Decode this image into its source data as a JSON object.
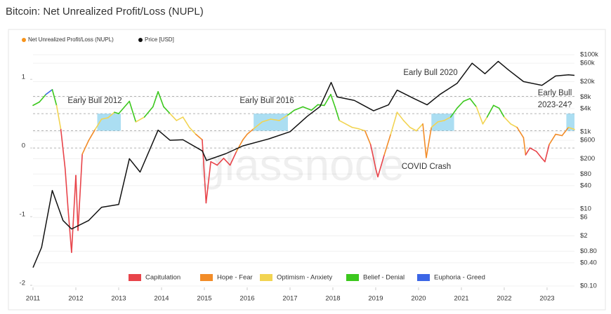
{
  "chart_data": {
    "type": "line",
    "title": "Bitcoin: Net Unrealized Profit/Loss (NUPL)",
    "watermark": "glassnode",
    "xlim": [
      2011,
      2023.64
    ],
    "xticks": [
      2011,
      2012,
      2013,
      2014,
      2015,
      2016,
      2017,
      2018,
      2019,
      2020,
      2021,
      2022,
      2023
    ],
    "ylim": [
      -2.03,
      1.41
    ],
    "yticks": [
      -2,
      -1,
      0,
      1
    ],
    "y2lim": [
      0.092,
      123000
    ],
    "y2log": true,
    "y2ticks": [
      {
        "value": 100000,
        "label": "$100k"
      },
      {
        "value": 60000,
        "label": "$60k"
      },
      {
        "value": 20000,
        "label": "$20k"
      },
      {
        "value": 8000,
        "label": "$8k"
      },
      {
        "value": 4000,
        "label": "$4k"
      },
      {
        "value": 1000,
        "label": "$1k"
      },
      {
        "value": 600,
        "label": "$600"
      },
      {
        "value": 200,
        "label": "$200"
      },
      {
        "value": 80,
        "label": "$80"
      },
      {
        "value": 40,
        "label": "$40"
      },
      {
        "value": 10,
        "label": "$10"
      },
      {
        "value": 6,
        "label": "$6"
      },
      {
        "value": 2,
        "label": "$2"
      },
      {
        "value": 0.8,
        "label": "$0.80"
      },
      {
        "value": 0.4,
        "label": "$0.40"
      },
      {
        "value": 0.1,
        "label": "$0.10"
      }
    ],
    "zone_bounds": [
      0,
      0.25,
      0.5,
      0.75
    ],
    "zones": [
      {
        "name": "Capitulation",
        "color": "#e8444a"
      },
      {
        "name": "Hope - Fear",
        "color": "#f28c28"
      },
      {
        "name": "Optimism - Anxiety",
        "color": "#f2d452"
      },
      {
        "name": "Belief - Denial",
        "color": "#3cc81e"
      },
      {
        "name": "Euphoria - Greed",
        "color": "#3c66e6"
      }
    ],
    "highlights": [
      [
        2012.5,
        2013.05
      ],
      [
        2016.15,
        2016.95
      ],
      [
        2020.3,
        2020.83
      ],
      [
        2023.45,
        2023.64
      ]
    ],
    "annotations": [
      "Early Bull 2012",
      "Early Bull 2016",
      "Early Bull 2020",
      "Early Bull",
      "2023-24?",
      "COVID Crash"
    ],
    "series": [
      {
        "name": "Net Unrealized Profit/Loss (NUPL)",
        "color": "#f7931a",
        "x": [
          2011.0,
          2011.15,
          2011.3,
          2011.45,
          2011.55,
          2011.65,
          2011.75,
          2011.82,
          2011.9,
          2012.0,
          2012.05,
          2012.15,
          2012.3,
          2012.45,
          2012.6,
          2012.75,
          2012.9,
          2013.0,
          2013.25,
          2013.4,
          2013.6,
          2013.8,
          2013.92,
          2014.05,
          2014.2,
          2014.35,
          2014.5,
          2014.65,
          2014.8,
          2014.95,
          2015.04,
          2015.15,
          2015.3,
          2015.45,
          2015.6,
          2015.75,
          2015.9,
          2016.0,
          2016.15,
          2016.35,
          2016.55,
          2016.75,
          2016.95,
          2017.1,
          2017.3,
          2017.5,
          2017.65,
          2017.8,
          2017.95,
          2018.05,
          2018.15,
          2018.3,
          2018.45,
          2018.6,
          2018.75,
          2018.88,
          2018.95,
          2019.0,
          2019.05,
          2019.2,
          2019.35,
          2019.5,
          2019.65,
          2019.8,
          2019.95,
          2020.1,
          2020.18,
          2020.3,
          2020.45,
          2020.6,
          2020.75,
          2020.9,
          2021.05,
          2021.2,
          2021.35,
          2021.5,
          2021.6,
          2021.75,
          2021.88,
          2022.0,
          2022.15,
          2022.3,
          2022.45,
          2022.5,
          2022.6,
          2022.75,
          2022.88,
          2022.95,
          2023.05,
          2023.2,
          2023.35,
          2023.5,
          2023.64
        ],
        "values": [
          0.62,
          0.67,
          0.78,
          0.85,
          0.62,
          0.27,
          -0.3,
          -0.9,
          -1.52,
          -0.4,
          -1.2,
          -0.09,
          0.11,
          0.27,
          0.42,
          0.44,
          0.52,
          0.5,
          0.68,
          0.38,
          0.45,
          0.6,
          0.82,
          0.6,
          0.5,
          0.4,
          0.45,
          0.3,
          0.2,
          0.12,
          -0.8,
          -0.2,
          -0.25,
          -0.15,
          -0.25,
          -0.05,
          0.12,
          0.2,
          0.28,
          0.38,
          0.42,
          0.4,
          0.48,
          0.55,
          0.6,
          0.55,
          0.63,
          0.62,
          0.78,
          0.6,
          0.4,
          0.35,
          0.3,
          0.28,
          0.25,
          0.05,
          -0.15,
          -0.3,
          -0.42,
          -0.1,
          0.2,
          0.52,
          0.4,
          0.3,
          0.25,
          0.35,
          -0.14,
          0.3,
          0.38,
          0.4,
          0.45,
          0.58,
          0.68,
          0.72,
          0.6,
          0.35,
          0.45,
          0.62,
          0.58,
          0.45,
          0.35,
          0.3,
          0.15,
          -0.1,
          0.0,
          -0.05,
          -0.15,
          -0.2,
          0.05,
          0.2,
          0.18,
          0.3,
          0.27
        ]
      },
      {
        "name": "Price [USD]",
        "color": "#111111",
        "axis": "y2",
        "x": [
          2011.0,
          2011.2,
          2011.45,
          2011.7,
          2011.9,
          2012.3,
          2012.6,
          2013.0,
          2013.25,
          2013.5,
          2013.92,
          2014.2,
          2014.5,
          2014.95,
          2015.05,
          2015.5,
          2015.9,
          2016.5,
          2017.0,
          2017.4,
          2017.7,
          2017.96,
          2018.1,
          2018.5,
          2018.95,
          2019.3,
          2019.5,
          2019.9,
          2020.2,
          2020.5,
          2020.9,
          2021.25,
          2021.55,
          2021.86,
          2022.1,
          2022.45,
          2022.88,
          2023.2,
          2023.5,
          2023.64
        ],
        "values": [
          0.3,
          1,
          30,
          5,
          3,
          5,
          11,
          13,
          200,
          90,
          1100,
          600,
          620,
          320,
          180,
          270,
          430,
          650,
          1000,
          2500,
          4500,
          19000,
          8000,
          6500,
          3500,
          5000,
          12000,
          7200,
          5000,
          9300,
          18000,
          60000,
          32000,
          67000,
          40000,
          20000,
          16000,
          28000,
          30000,
          29000
        ]
      }
    ]
  }
}
